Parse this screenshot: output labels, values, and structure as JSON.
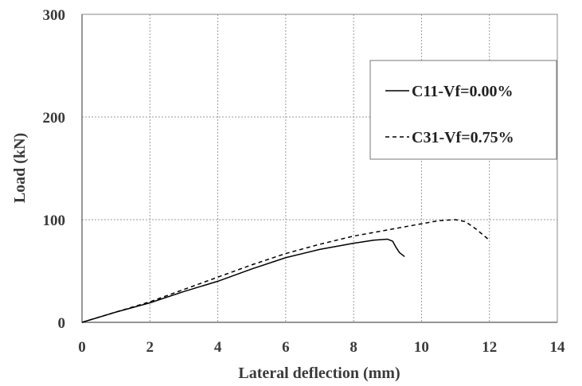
{
  "chart_data": {
    "type": "line",
    "title": "",
    "xlabel": "Lateral deflection (mm)",
    "ylabel": "Load (kN)",
    "xlim": [
      0,
      14
    ],
    "ylim": [
      0,
      300
    ],
    "xticks": [
      0,
      2,
      4,
      6,
      8,
      10,
      12,
      14
    ],
    "yticks": [
      0,
      100,
      200,
      300
    ],
    "grid": true,
    "legend_position": "top-right",
    "series": [
      {
        "name": "C11-Vf=0.00%",
        "line_style": "solid",
        "color": "#000000",
        "x": [
          0,
          1,
          2,
          3,
          4,
          5,
          6,
          7,
          8,
          8.6,
          9.0,
          9.15,
          9.25,
          9.35,
          9.5
        ],
        "y": [
          0,
          10,
          19,
          30,
          40,
          52,
          63,
          71,
          77,
          80,
          81,
          79,
          73,
          68,
          64
        ]
      },
      {
        "name": "C31-Vf=0.75%",
        "line_style": "dashed",
        "color": "#000000",
        "x": [
          0,
          1,
          2,
          3,
          4,
          5,
          6,
          7,
          8,
          9,
          10,
          10.5,
          11.0,
          11.3,
          11.6,
          12.0
        ],
        "y": [
          0,
          10,
          20,
          32,
          44,
          56,
          67,
          76,
          84,
          90,
          96,
          99,
          100,
          98,
          91,
          80
        ]
      }
    ]
  }
}
